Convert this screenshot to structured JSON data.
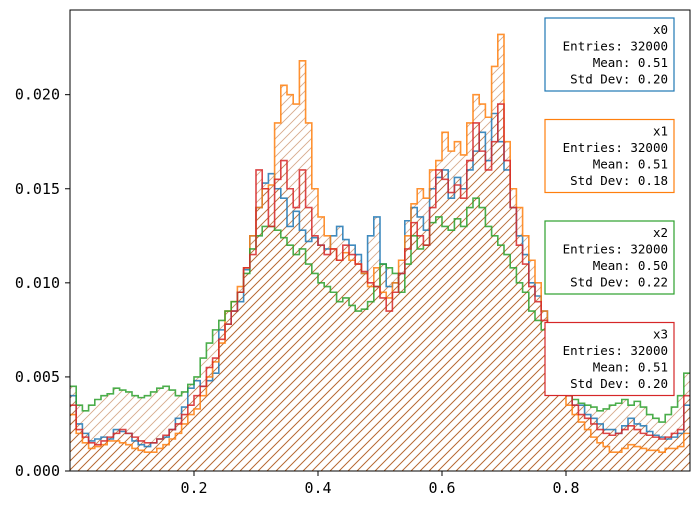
{
  "chart_data": {
    "type": "histogram",
    "xlim": [
      0.0,
      1.0
    ],
    "ylim": [
      0.0,
      0.0245
    ],
    "x_ticks": [
      {
        "value": 0.2,
        "label": "0.2"
      },
      {
        "value": 0.4,
        "label": "0.4"
      },
      {
        "value": 0.6,
        "label": "0.6"
      },
      {
        "value": 0.8,
        "label": "0.8"
      }
    ],
    "y_ticks": [
      {
        "value": 0.0,
        "label": "0.000"
      },
      {
        "value": 0.005,
        "label": "0.005"
      },
      {
        "value": 0.01,
        "label": "0.010"
      },
      {
        "value": 0.015,
        "label": "0.015"
      },
      {
        "value": 0.02,
        "label": "0.020"
      }
    ],
    "grid": false,
    "bins": 100,
    "hatch_fill_color": "#b5652e",
    "series": [
      {
        "name": "x0",
        "color": "#1f77b4",
        "stats": {
          "name": "x0",
          "entries": "Entries: 32000",
          "mean": "Mean: 0.51",
          "std": "Std Dev: 0.20"
        },
        "values": [
          0.004,
          0.0025,
          0.002,
          0.0016,
          0.0017,
          0.0018,
          0.0017,
          0.0022,
          0.0021,
          0.002,
          0.0016,
          0.0014,
          0.0013,
          0.0015,
          0.0017,
          0.0018,
          0.0022,
          0.0028,
          0.0034,
          0.0044,
          0.0048,
          0.0045,
          0.0048,
          0.0052,
          0.0075,
          0.0078,
          0.0085,
          0.009,
          0.0107,
          0.0125,
          0.014,
          0.0153,
          0.0158,
          0.015,
          0.0145,
          0.013,
          0.0138,
          0.0128,
          0.0122,
          0.0124,
          0.012,
          0.0118,
          0.0125,
          0.013,
          0.0123,
          0.012,
          0.0115,
          0.0105,
          0.0125,
          0.0135,
          0.011,
          0.0098,
          0.01,
          0.0105,
          0.0133,
          0.014,
          0.0135,
          0.0128,
          0.015,
          0.0156,
          0.016,
          0.0145,
          0.0156,
          0.015,
          0.016,
          0.017,
          0.018,
          0.0165,
          0.019,
          0.0175,
          0.016,
          0.014,
          0.0125,
          0.0115,
          0.01,
          0.0093,
          0.0085,
          0.0075,
          0.005,
          0.0045,
          0.004,
          0.0035,
          0.0035,
          0.003,
          0.0028,
          0.0025,
          0.0022,
          0.0022,
          0.002,
          0.0024,
          0.0028,
          0.0025,
          0.0024,
          0.0021,
          0.0019,
          0.0018,
          0.0017,
          0.0018,
          0.002,
          0.0035
        ]
      },
      {
        "name": "x1",
        "color": "#ff7f0e",
        "stats": {
          "name": "x1",
          "entries": "Entries: 32000",
          "mean": "Mean: 0.51",
          "std": "Std Dev: 0.18"
        },
        "values": [
          0.003,
          0.002,
          0.0015,
          0.0012,
          0.0013,
          0.0014,
          0.0016,
          0.0016,
          0.0015,
          0.0014,
          0.0012,
          0.0011,
          0.001,
          0.001,
          0.0012,
          0.0014,
          0.0017,
          0.002,
          0.0025,
          0.003,
          0.0033,
          0.004,
          0.005,
          0.0058,
          0.0068,
          0.0085,
          0.009,
          0.0098,
          0.0108,
          0.0125,
          0.014,
          0.015,
          0.0152,
          0.0185,
          0.0205,
          0.02,
          0.0195,
          0.0218,
          0.0185,
          0.015,
          0.0135,
          0.0125,
          0.0118,
          0.0112,
          0.0116,
          0.0112,
          0.011,
          0.0105,
          0.0098,
          0.0108,
          0.0095,
          0.0092,
          0.01,
          0.0112,
          0.0125,
          0.0142,
          0.015,
          0.0145,
          0.016,
          0.0165,
          0.018,
          0.017,
          0.0175,
          0.0168,
          0.0185,
          0.02,
          0.0195,
          0.0188,
          0.0215,
          0.0232,
          0.0175,
          0.015,
          0.014,
          0.0125,
          0.0112,
          0.01,
          0.0085,
          0.007,
          0.0055,
          0.0045,
          0.0035,
          0.003,
          0.0026,
          0.0022,
          0.0018,
          0.0015,
          0.0013,
          0.001,
          0.001,
          0.0012,
          0.0014,
          0.0013,
          0.0012,
          0.0011,
          0.0011,
          0.001,
          0.0012,
          0.0012,
          0.0013,
          0.002
        ]
      },
      {
        "name": "x2",
        "color": "#2ca02c",
        "stats": {
          "name": "x2",
          "entries": "Entries: 32000",
          "mean": "Mean: 0.50",
          "std": "Std Dev: 0.22"
        },
        "values": [
          0.0045,
          0.0035,
          0.0032,
          0.0035,
          0.0038,
          0.004,
          0.0041,
          0.0044,
          0.0043,
          0.0042,
          0.004,
          0.0039,
          0.004,
          0.0042,
          0.0044,
          0.0045,
          0.0043,
          0.004,
          0.0042,
          0.0046,
          0.005,
          0.006,
          0.0068,
          0.0075,
          0.008,
          0.0085,
          0.009,
          0.0095,
          0.0105,
          0.0118,
          0.0125,
          0.013,
          0.013,
          0.0128,
          0.0124,
          0.012,
          0.0115,
          0.0118,
          0.011,
          0.0105,
          0.01,
          0.0098,
          0.0095,
          0.009,
          0.0092,
          0.0088,
          0.0085,
          0.0086,
          0.009,
          0.0098,
          0.011,
          0.0108,
          0.0105,
          0.0095,
          0.011,
          0.0125,
          0.0118,
          0.012,
          0.0132,
          0.0135,
          0.013,
          0.0128,
          0.0134,
          0.013,
          0.014,
          0.0145,
          0.014,
          0.013,
          0.0125,
          0.012,
          0.0115,
          0.0108,
          0.01,
          0.0095,
          0.0085,
          0.008,
          0.0075,
          0.006,
          0.005,
          0.0045,
          0.004,
          0.0038,
          0.0036,
          0.0035,
          0.0034,
          0.0032,
          0.0033,
          0.0035,
          0.0036,
          0.0038,
          0.0035,
          0.0037,
          0.0034,
          0.003,
          0.0028,
          0.0026,
          0.003,
          0.0034,
          0.004,
          0.0052
        ]
      },
      {
        "name": "x3",
        "color": "#d62728",
        "stats": {
          "name": "x3",
          "entries": "Entries: 32000",
          "mean": "Mean: 0.51",
          "std": "Std Dev: 0.20"
        },
        "values": [
          0.0035,
          0.0022,
          0.0018,
          0.0015,
          0.0014,
          0.0016,
          0.0018,
          0.002,
          0.0022,
          0.002,
          0.0018,
          0.0016,
          0.0015,
          0.0015,
          0.0017,
          0.0019,
          0.0022,
          0.0025,
          0.003,
          0.0035,
          0.004,
          0.0045,
          0.0055,
          0.006,
          0.007,
          0.0078,
          0.0085,
          0.0095,
          0.0108,
          0.0115,
          0.016,
          0.015,
          0.013,
          0.0155,
          0.0165,
          0.015,
          0.014,
          0.016,
          0.014,
          0.0125,
          0.012,
          0.0115,
          0.0118,
          0.0112,
          0.012,
          0.0115,
          0.011,
          0.0106,
          0.01,
          0.0098,
          0.0092,
          0.0085,
          0.0095,
          0.0105,
          0.0118,
          0.0132,
          0.0125,
          0.012,
          0.014,
          0.016,
          0.0155,
          0.0148,
          0.0152,
          0.0145,
          0.0165,
          0.0185,
          0.017,
          0.016,
          0.0175,
          0.0195,
          0.0165,
          0.014,
          0.012,
          0.011,
          0.0098,
          0.009,
          0.008,
          0.0065,
          0.0052,
          0.0045,
          0.004,
          0.0035,
          0.003,
          0.0028,
          0.0025,
          0.0022,
          0.002,
          0.0019,
          0.002,
          0.0022,
          0.0024,
          0.0022,
          0.002,
          0.0019,
          0.0018,
          0.0017,
          0.0018,
          0.002,
          0.0022,
          0.004
        ]
      }
    ]
  }
}
